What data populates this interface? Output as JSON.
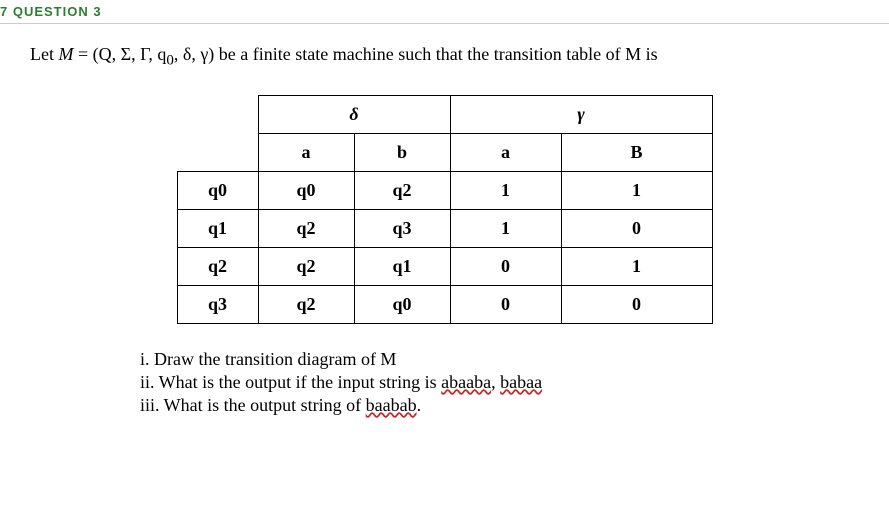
{
  "header": {
    "question_label": "7 QUESTION 3"
  },
  "intro": {
    "prefix": "Let ",
    "mvar": "M",
    "eq": " = (Q, Σ, Γ, q",
    "sub0": "0",
    "suffix": ", δ, γ) be a finite state machine such that the transition table of M is"
  },
  "table": {
    "delta_header": "δ",
    "gamma_header": "γ",
    "col_a": "a",
    "col_b": "b",
    "col_ga": "a",
    "col_gb": "B",
    "rows": [
      {
        "state": "q0",
        "da": "q0",
        "db": "q2",
        "ga": "1",
        "gb": "1"
      },
      {
        "state": "q1",
        "da": "q2",
        "db": "q3",
        "ga": "1",
        "gb": "0"
      },
      {
        "state": "q2",
        "da": "q2",
        "db": "q1",
        "ga": "0",
        "gb": "1"
      },
      {
        "state": "q3",
        "da": "q2",
        "db": "q0",
        "ga": "0",
        "gb": "0"
      }
    ]
  },
  "questions": {
    "i_prefix": "i. Draw the transition diagram of M",
    "ii_prefix": "ii. What is the output if the input string is ",
    "ii_word1": "abaaba",
    "ii_mid": ", ",
    "ii_word2": "babaa",
    "iii_prefix": "iii. What is the output string of ",
    "iii_word": "baabab",
    "iii_suffix": "."
  },
  "styling": {
    "header_color": "#2e7d32",
    "border_color": "#000000",
    "wavy_color": "#c62828",
    "font_body": "Times New Roman",
    "font_header": "Arial",
    "body_fontsize": 18,
    "header_fontsize": 13,
    "background": "#ffffff",
    "col_widths": {
      "state": 80,
      "da": 95,
      "db": 95,
      "ga": 110,
      "gb": 150
    }
  }
}
